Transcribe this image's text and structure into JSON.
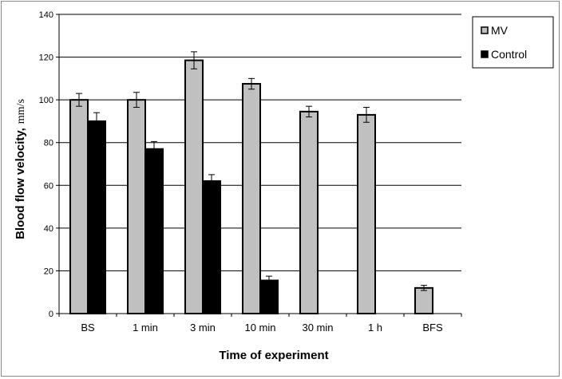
{
  "chart_data": {
    "type": "bar",
    "categories": [
      "BS",
      "1 min",
      "3 min",
      "10 min",
      "30 min",
      "1 h",
      "BFS"
    ],
    "series": [
      {
        "name": "MV",
        "color": "#c0c0c0",
        "values": [
          100,
          100,
          118.5,
          107.5,
          94.5,
          93,
          12
        ],
        "errors": [
          3,
          3.5,
          4,
          2.5,
          2.5,
          3.5,
          1.2
        ]
      },
      {
        "name": "Control",
        "color": "#000000",
        "values": [
          90,
          77,
          62,
          15.5,
          null,
          null,
          null
        ],
        "errors": [
          4,
          3.5,
          3,
          2,
          null,
          null,
          null
        ]
      }
    ],
    "xlabel": "Time of experiment",
    "ylabel": "Blood flow velocity,",
    "ylabel_unit": "mm/s",
    "ylim": [
      0,
      140
    ],
    "yticks": [
      0,
      20,
      40,
      60,
      80,
      100,
      120,
      140
    ],
    "grid": true,
    "legend_position": "top-right"
  }
}
